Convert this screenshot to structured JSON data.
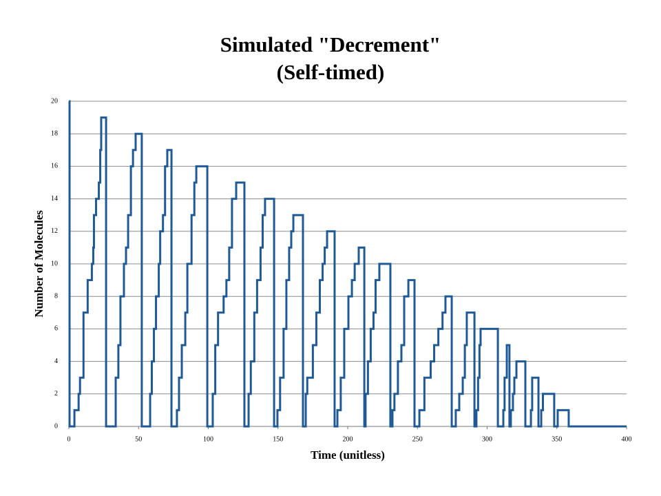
{
  "chart_data": {
    "type": "line",
    "drawstyle": "steps-post",
    "title": [
      "Simulated \"Decrement\"",
      "(Self-timed)"
    ],
    "xlabel": "Time (unitless)",
    "ylabel": "Number of Molecules",
    "x": [
      0,
      0.5,
      4,
      7,
      8,
      10.5,
      13.5,
      16.5,
      17.5,
      18,
      19.5,
      21.5,
      22.5,
      23.2,
      26.7,
      33.6,
      35.5,
      37,
      39.5,
      41,
      42.5,
      44.5,
      46,
      47.9,
      52.3,
      58.3,
      59.5,
      61,
      62.5,
      64.5,
      65.5,
      67.5,
      69,
      70.6,
      73.6,
      77.5,
      79,
      81,
      83.5,
      85,
      88,
      90,
      91.4,
      99.3,
      103.2,
      105,
      107,
      111,
      113,
      115,
      117,
      120,
      125.9,
      128.9,
      130.5,
      133,
      135,
      137.5,
      139,
      140.7,
      147.2,
      149.6,
      151.5,
      154,
      156,
      158,
      159.5,
      161,
      167.9,
      169.9,
      171,
      175,
      177.5,
      180,
      182,
      183.5,
      185.2,
      190.6,
      192.6,
      195,
      197.5,
      200.5,
      203,
      205,
      207.9,
      211.9,
      212.8,
      214.5,
      216.5,
      218.5,
      220,
      222.7,
      230.6,
      232.1,
      233.5,
      236,
      238.5,
      240.5,
      243.5,
      247.9,
      251.4,
      255,
      259.5,
      262,
      265,
      268,
      270.1,
      274.6,
      277.5,
      280,
      282.5,
      284,
      285.4,
      290.9,
      292.3,
      293.5,
      294.5,
      295.3,
      307.7,
      311.6,
      312.5,
      314.1,
      316,
      317,
      318.5,
      319.5,
      321,
      327.4,
      331.4,
      332.3,
      336.8,
      338.8,
      340,
      348.1,
      350.6,
      358.5,
      400
    ],
    "series": [
      {
        "name": "Molecules",
        "color": "#1f5a96",
        "values": [
          20,
          0,
          1,
          2,
          3,
          7,
          9,
          10,
          11,
          13,
          14,
          15,
          17,
          19,
          0,
          3,
          5,
          8,
          10,
          11,
          13,
          16,
          17,
          18,
          0,
          2,
          4,
          6,
          8,
          10,
          12,
          13,
          16,
          17,
          0,
          1,
          3,
          5,
          7,
          10,
          13,
          15,
          16,
          0,
          2,
          5,
          7,
          8,
          9,
          11,
          14,
          15,
          0,
          2,
          4,
          7,
          9,
          11,
          13,
          14,
          0,
          1,
          3,
          6,
          9,
          11,
          12,
          13,
          0,
          2,
          3,
          5,
          7,
          9,
          10,
          11,
          12,
          0,
          1,
          3,
          6,
          8,
          9,
          10,
          11,
          0,
          2,
          4,
          6,
          7,
          9,
          10,
          0,
          1,
          2,
          4,
          5,
          8,
          9,
          0,
          1,
          3,
          4,
          5,
          6,
          7,
          8,
          0,
          1,
          2,
          3,
          5,
          7,
          0,
          1,
          3,
          5,
          6,
          0,
          1,
          3,
          5,
          0,
          1,
          2,
          3,
          4,
          0,
          1,
          3,
          0,
          1,
          2,
          0,
          1,
          0,
          0
        ]
      }
    ],
    "xlim": [
      0,
      400
    ],
    "xticks": [
      0,
      50,
      100,
      150,
      200,
      250,
      300,
      350,
      400
    ],
    "ylim": [
      0,
      20
    ],
    "yticks": [
      0,
      2,
      4,
      6,
      8,
      10,
      12,
      14,
      16,
      18,
      20
    ],
    "grid": true
  }
}
